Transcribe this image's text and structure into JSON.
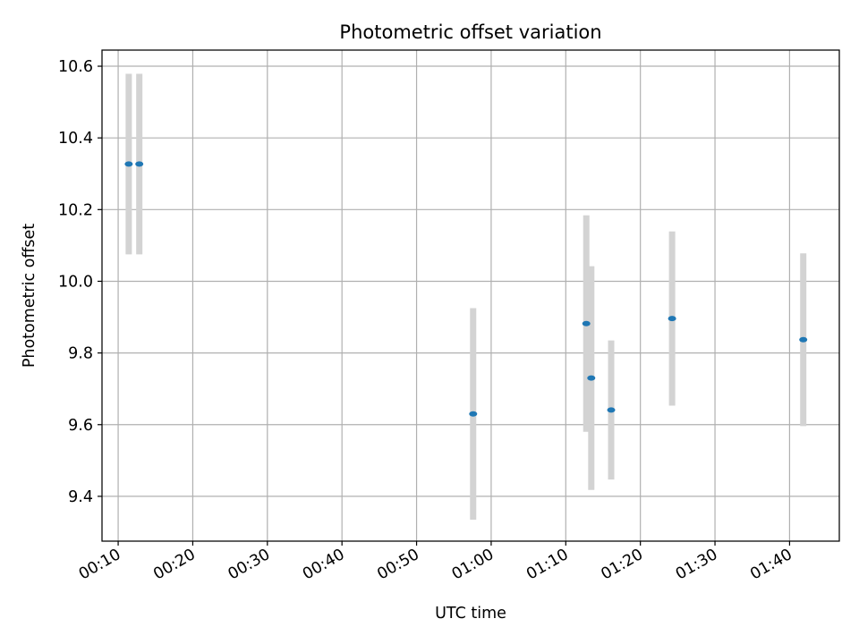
{
  "chart_data": {
    "type": "scatter",
    "title": "Photometric offset variation",
    "xlabel": "UTC time",
    "ylabel": "Photometric offset",
    "grid": true,
    "xlim": [
      "00:07:50",
      "01:46:40"
    ],
    "ylim": [
      9.275,
      10.645
    ],
    "x_ticks": [
      "00:10",
      "00:20",
      "00:30",
      "00:40",
      "00:50",
      "01:00",
      "01:10",
      "01:20",
      "01:30",
      "01:40"
    ],
    "y_ticks": [
      9.4,
      9.6,
      9.8,
      10.0,
      10.2,
      10.4,
      10.6
    ],
    "y_tick_labels": [
      "9.4",
      "9.6",
      "9.8",
      "10.0",
      "10.2",
      "10.4",
      "10.6"
    ],
    "marker_color": "#1f77b4",
    "errorbar_color": "#d3d3d3",
    "series": [
      {
        "points": [
          {
            "x": "00:11:25",
            "y": 10.327,
            "yerr": 0.252
          },
          {
            "x": "00:12:50",
            "y": 10.327,
            "yerr": 0.252
          },
          {
            "x": "00:57:35",
            "y": 9.63,
            "yerr": 0.295
          },
          {
            "x": "01:12:45",
            "y": 9.882,
            "yerr": 0.302
          },
          {
            "x": "01:13:25",
            "y": 9.73,
            "yerr": 0.312
          },
          {
            "x": "01:16:05",
            "y": 9.641,
            "yerr": 0.194
          },
          {
            "x": "01:24:15",
            "y": 9.896,
            "yerr": 0.243
          },
          {
            "x": "01:41:50",
            "y": 9.837,
            "yerr": 0.241
          }
        ]
      }
    ]
  }
}
